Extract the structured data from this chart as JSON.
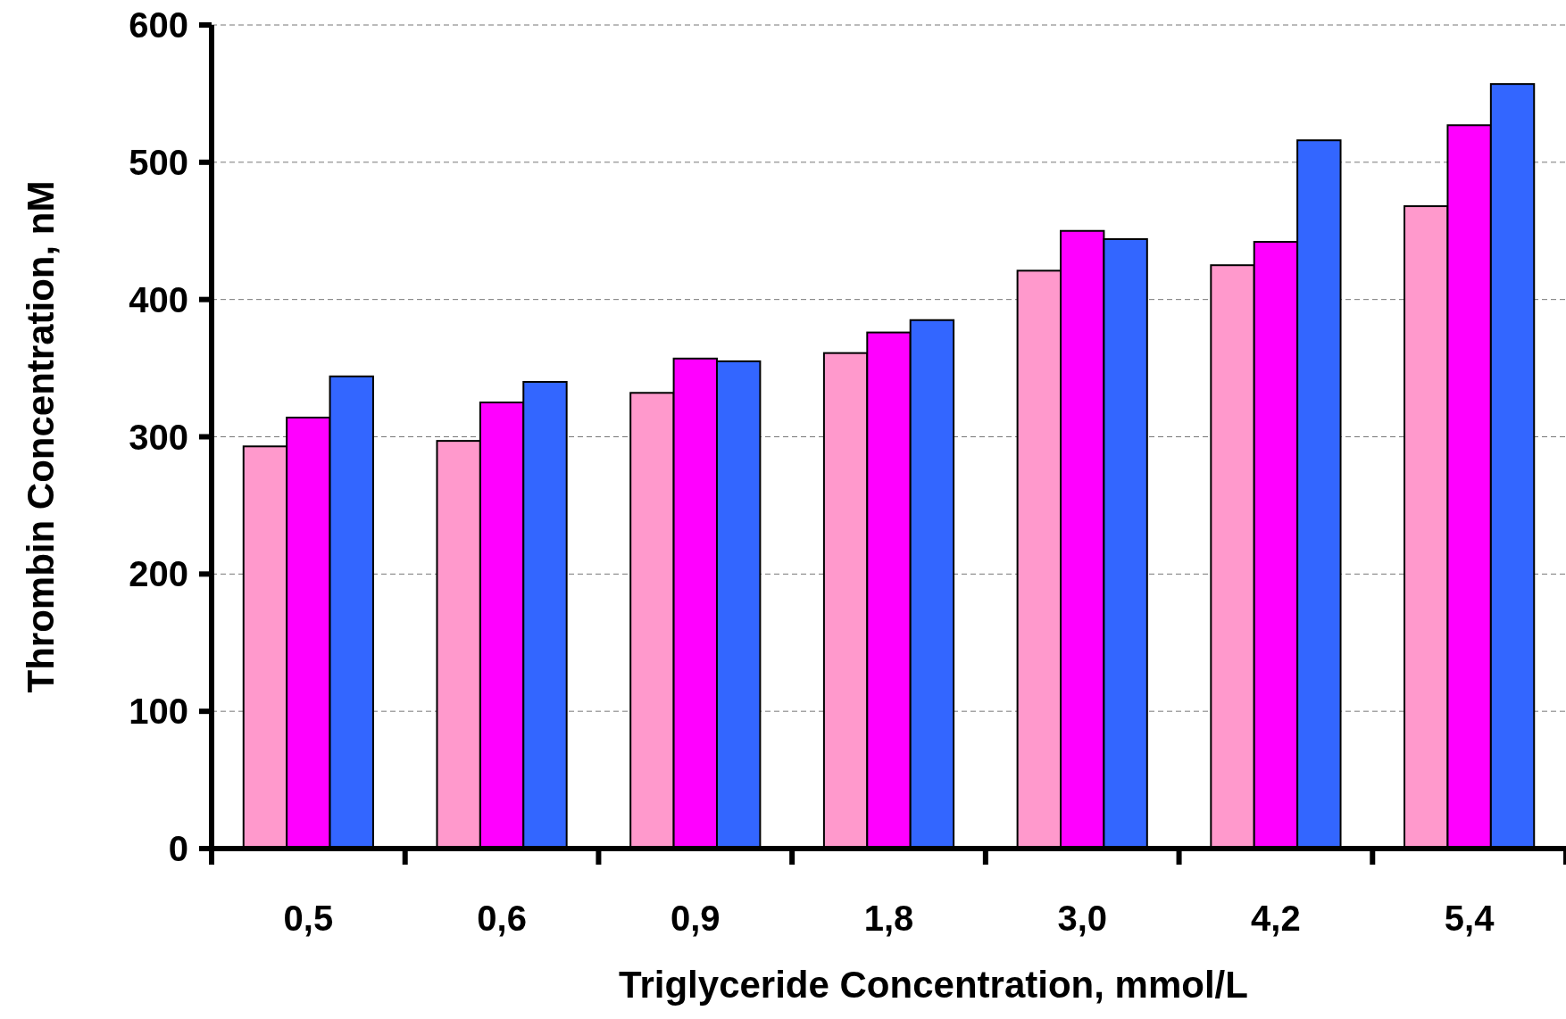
{
  "chart_data": {
    "type": "bar",
    "xlabel": "Triglyceride Concentration, mmol/L",
    "ylabel": "Thrombin Concentration, nM",
    "categories": [
      "0,5",
      "0,6",
      "0,9",
      "1,8",
      "3,0",
      "4,2",
      "5,4"
    ],
    "series": [
      {
        "color": "#ff99cc",
        "values": [
          293,
          297,
          332,
          361,
          421,
          425,
          468
        ]
      },
      {
        "color": "#ff00ff",
        "values": [
          314,
          325,
          357,
          376,
          450,
          442,
          527
        ]
      },
      {
        "color": "#3366ff",
        "values": [
          344,
          340,
          355,
          385,
          444,
          516,
          557
        ]
      }
    ],
    "ylim": [
      0,
      600
    ],
    "yticks": [
      0,
      100,
      200,
      300,
      400,
      500,
      600
    ],
    "grid": "y"
  }
}
